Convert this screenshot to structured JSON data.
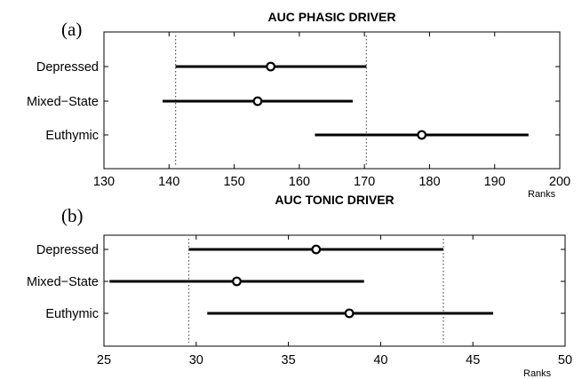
{
  "chart_data": [
    {
      "type": "interval",
      "panel_label": "(a)",
      "title": "AUC PHASIC DRIVER",
      "xlabel": "Ranks",
      "xlim": [
        130,
        200
      ],
      "xticks": [
        130,
        140,
        150,
        160,
        170,
        180,
        190,
        200
      ],
      "categories": [
        "Depressed",
        "Mixed−State",
        "Euthymic"
      ],
      "intervals": [
        {
          "category": "Depressed",
          "low": 141,
          "mean": 155.6,
          "high": 170.3
        },
        {
          "category": "Mixed−State",
          "low": 139,
          "mean": 153.6,
          "high": 168.2
        },
        {
          "category": "Euthymic",
          "low": 162.4,
          "mean": 178.8,
          "high": 195.2
        }
      ],
      "reference_lines": [
        141,
        170.3
      ]
    },
    {
      "type": "interval",
      "panel_label": "(b)",
      "title": "AUC TONIC DRIVER",
      "xlabel": "Ranks",
      "xlim": [
        25,
        50
      ],
      "xticks": [
        25,
        30,
        35,
        40,
        45,
        50
      ],
      "categories": [
        "Depressed",
        "Mixed−State",
        "Euthymic"
      ],
      "intervals": [
        {
          "category": "Depressed",
          "low": 29.6,
          "mean": 36.5,
          "high": 43.4
        },
        {
          "category": "Mixed−State",
          "low": 25.3,
          "mean": 32.2,
          "high": 39.1
        },
        {
          "category": "Euthymic",
          "low": 30.6,
          "mean": 38.3,
          "high": 46.1
        }
      ],
      "reference_lines": [
        29.6,
        43.4
      ]
    }
  ]
}
